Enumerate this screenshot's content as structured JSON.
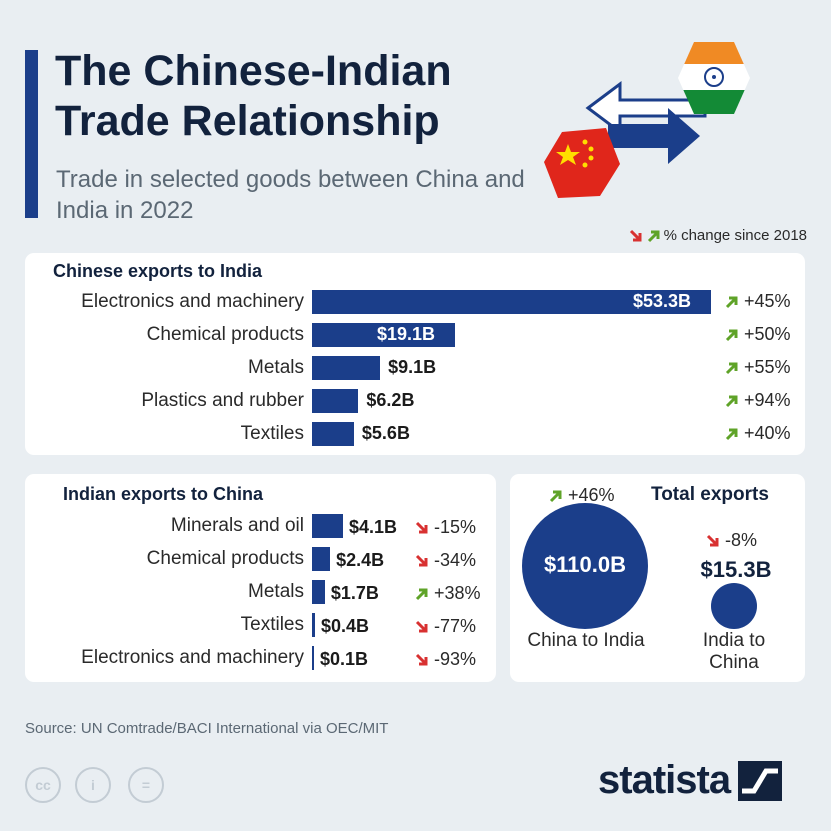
{
  "header": {
    "title": "The Chinese-Indian Trade Relationship",
    "subtitle": "Trade in selected goods between China and India in 2022"
  },
  "legend": {
    "text": "% change since 2018"
  },
  "chart_data": [
    {
      "type": "bar",
      "orientation": "horizontal",
      "title": "Chinese exports to India",
      "unit": "USD billions",
      "categories": [
        "Electronics and machinery",
        "Chemical products",
        "Metals",
        "Plastics and rubber",
        "Textiles"
      ],
      "values": [
        53.3,
        19.1,
        9.1,
        6.2,
        5.6
      ],
      "value_labels": [
        "$53.3B",
        "$19.1B",
        "$9.1B",
        "$6.2B",
        "$5.6B"
      ],
      "change_labels": [
        "+45%",
        "+50%",
        "+55%",
        "+94%",
        "+40%"
      ],
      "change_direction": [
        "up",
        "up",
        "up",
        "up",
        "up"
      ]
    },
    {
      "type": "bar",
      "orientation": "horizontal",
      "title": "Indian exports to China",
      "unit": "USD billions",
      "categories": [
        "Minerals and oil",
        "Chemical products",
        "Metals",
        "Textiles",
        "Electronics and machinery"
      ],
      "values": [
        4.1,
        2.4,
        1.7,
        0.4,
        0.1
      ],
      "value_labels": [
        "$4.1B",
        "$2.4B",
        "$1.7B",
        "$0.4B",
        "$0.1B"
      ],
      "change_labels": [
        "-15%",
        "-34%",
        "+38%",
        "-77%",
        "-93%"
      ],
      "change_direction": [
        "down",
        "down",
        "up",
        "down",
        "down"
      ]
    },
    {
      "type": "bubble",
      "title": "Total exports",
      "categories": [
        "China to India",
        "India to China"
      ],
      "values": [
        110.0,
        15.3
      ],
      "value_labels": [
        "$110.0B",
        "$15.3B"
      ],
      "change_labels": [
        "+46%",
        "-8%"
      ],
      "change_direction": [
        "up",
        "down"
      ]
    }
  ],
  "footer": {
    "source": "Source: UN Comtrade/BACI International via OEC/MIT",
    "cc_icons": [
      "cc",
      "i",
      "="
    ],
    "logo": "statista"
  },
  "colors": {
    "bar": "#1b3e8a",
    "up": "#5fa328",
    "down": "#d83131",
    "title": "#12223d"
  }
}
